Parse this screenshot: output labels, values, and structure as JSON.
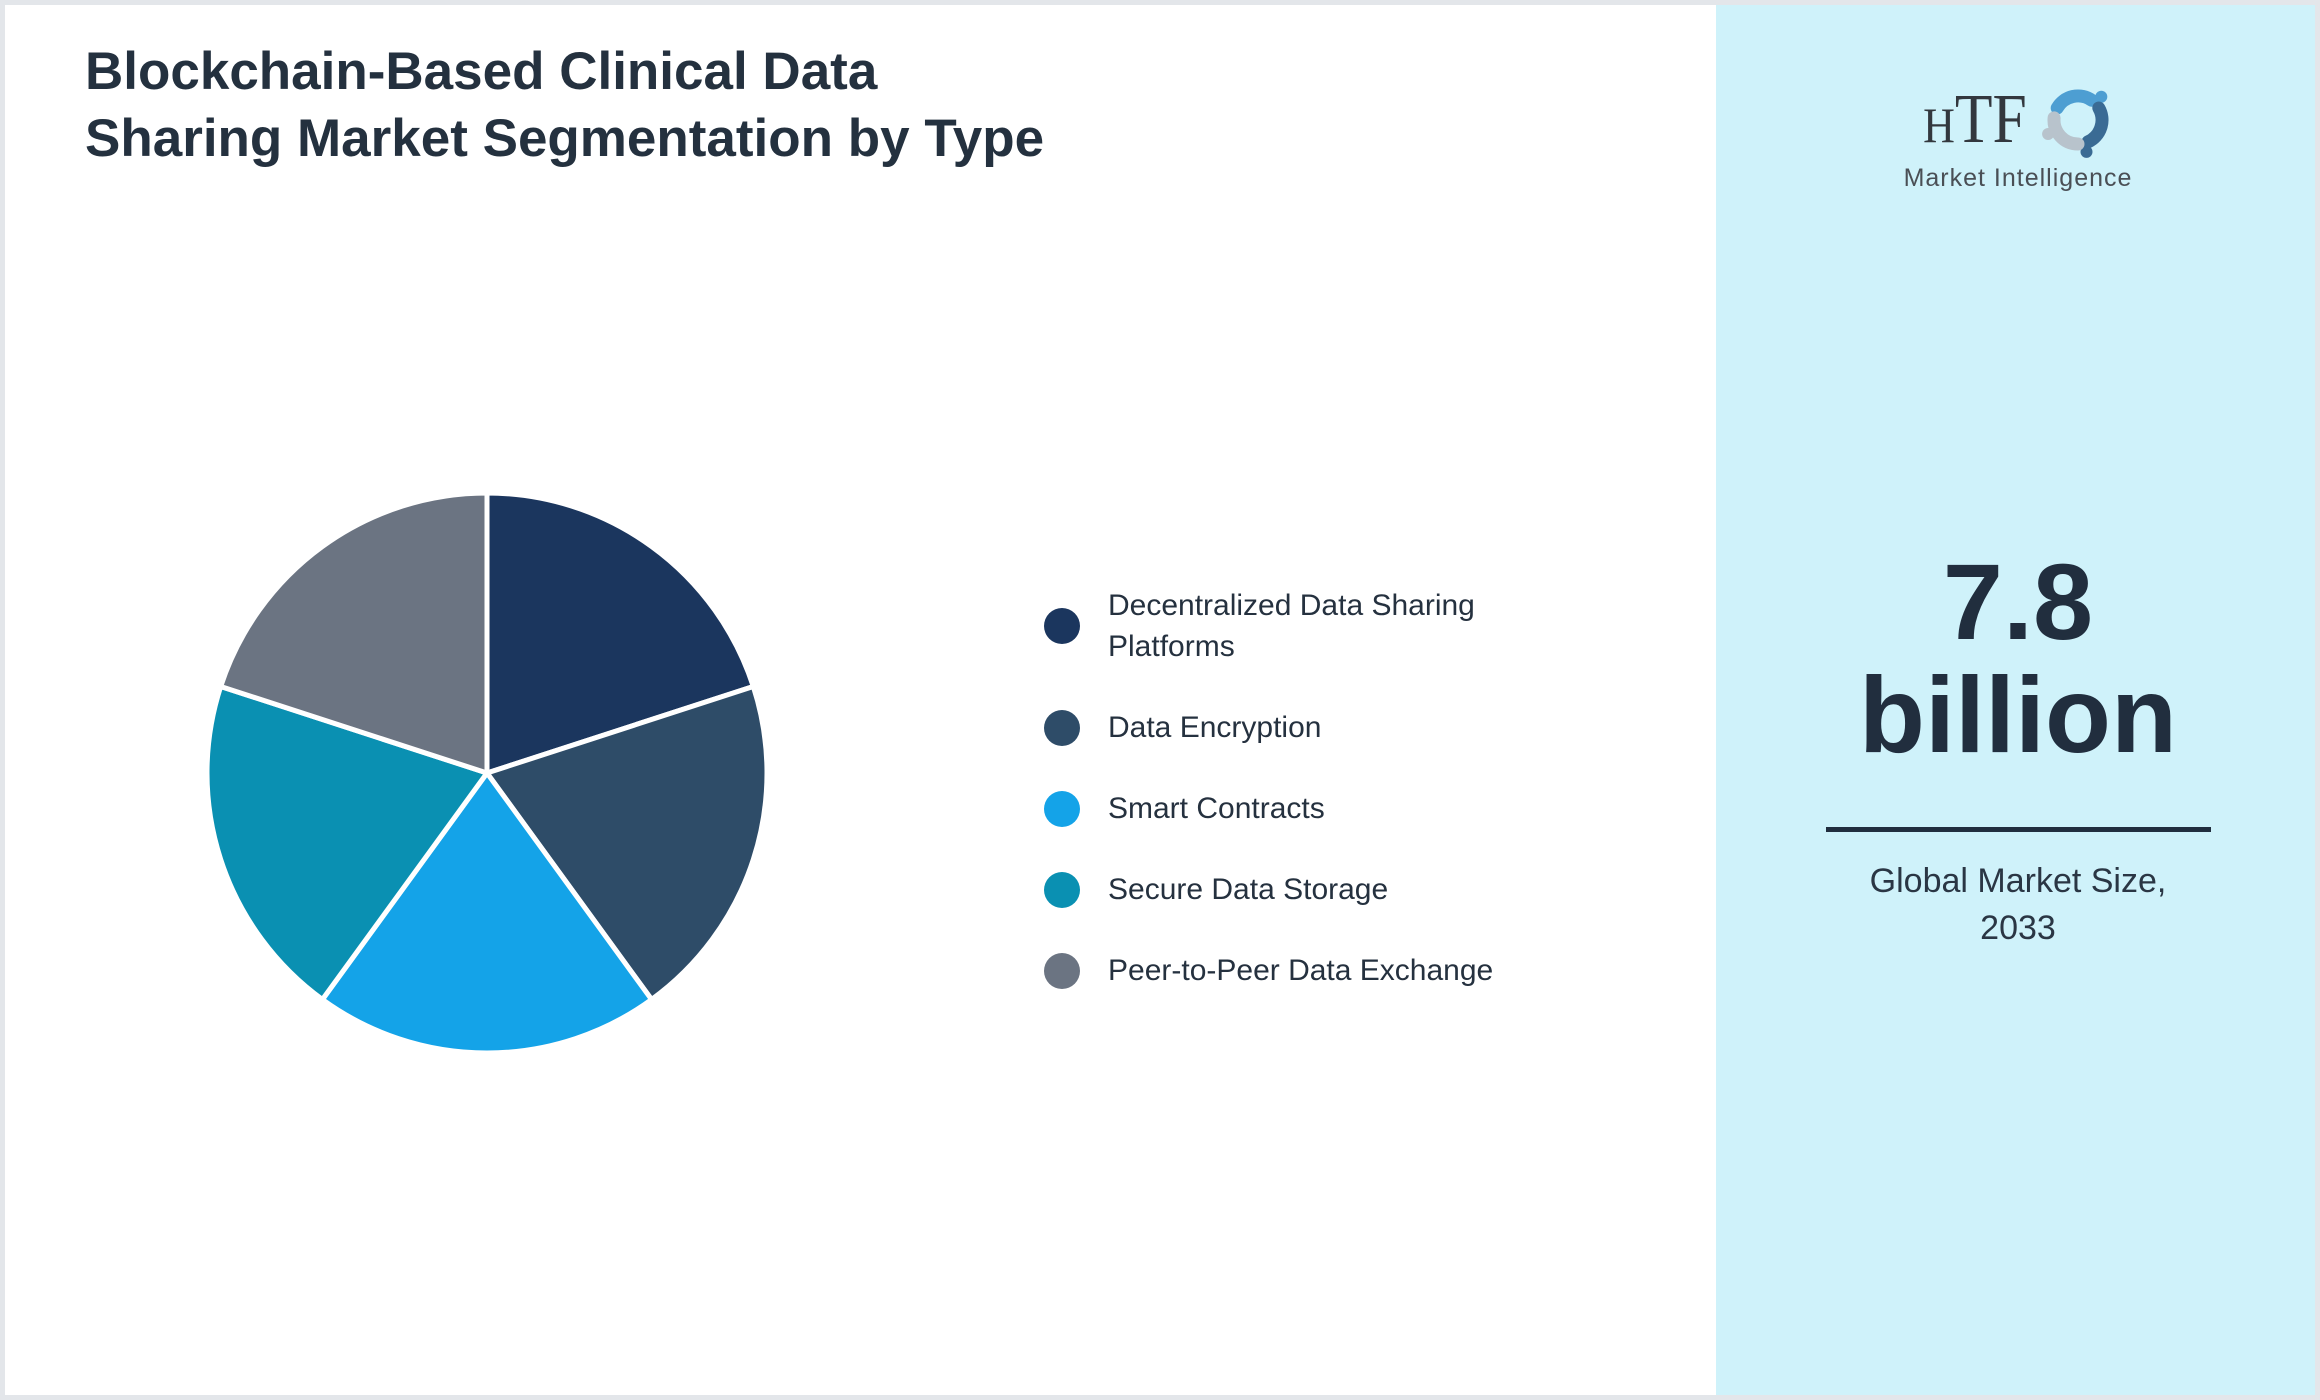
{
  "header": {
    "title": "Blockchain-Based Clinical Data Sharing Market Segmentation by Type",
    "title_color": "#24313f"
  },
  "chart_data": {
    "type": "pie",
    "title": "Blockchain-Based Clinical Data Sharing Market Segmentation by Type",
    "categories": [
      "Decentralized Data Sharing Platforms",
      "Data Encryption",
      "Smart Contracts",
      "Secure Data Storage",
      "Peer-to-Peer Data Exchange"
    ],
    "values": [
      20,
      20,
      20,
      20,
      20
    ],
    "unit": "percent (approx. equal shares)",
    "colors": [
      "#1b365e",
      "#2e4c68",
      "#14a3e8",
      "#0a90b2",
      "#6b7482"
    ],
    "start_angle_deg": 0,
    "direction": "clockwise",
    "slice_border_color": "#ffffff",
    "slice_border_width": 5,
    "legend_position": "right-of-chart",
    "data_labels": false
  },
  "logo": {
    "brand_initial": "H",
    "brand_rest": "TF",
    "subtitle": "Market Intelligence",
    "icon": "htf-swirl-icon",
    "icon_colors": [
      "#4d9ed2",
      "#3a6b94",
      "#b8c3cc"
    ]
  },
  "panel": {
    "background": "#cff2fa",
    "value": "7.8",
    "unit": "billion",
    "caption_line1": "Global Market Size,",
    "caption_line2": "2033"
  }
}
